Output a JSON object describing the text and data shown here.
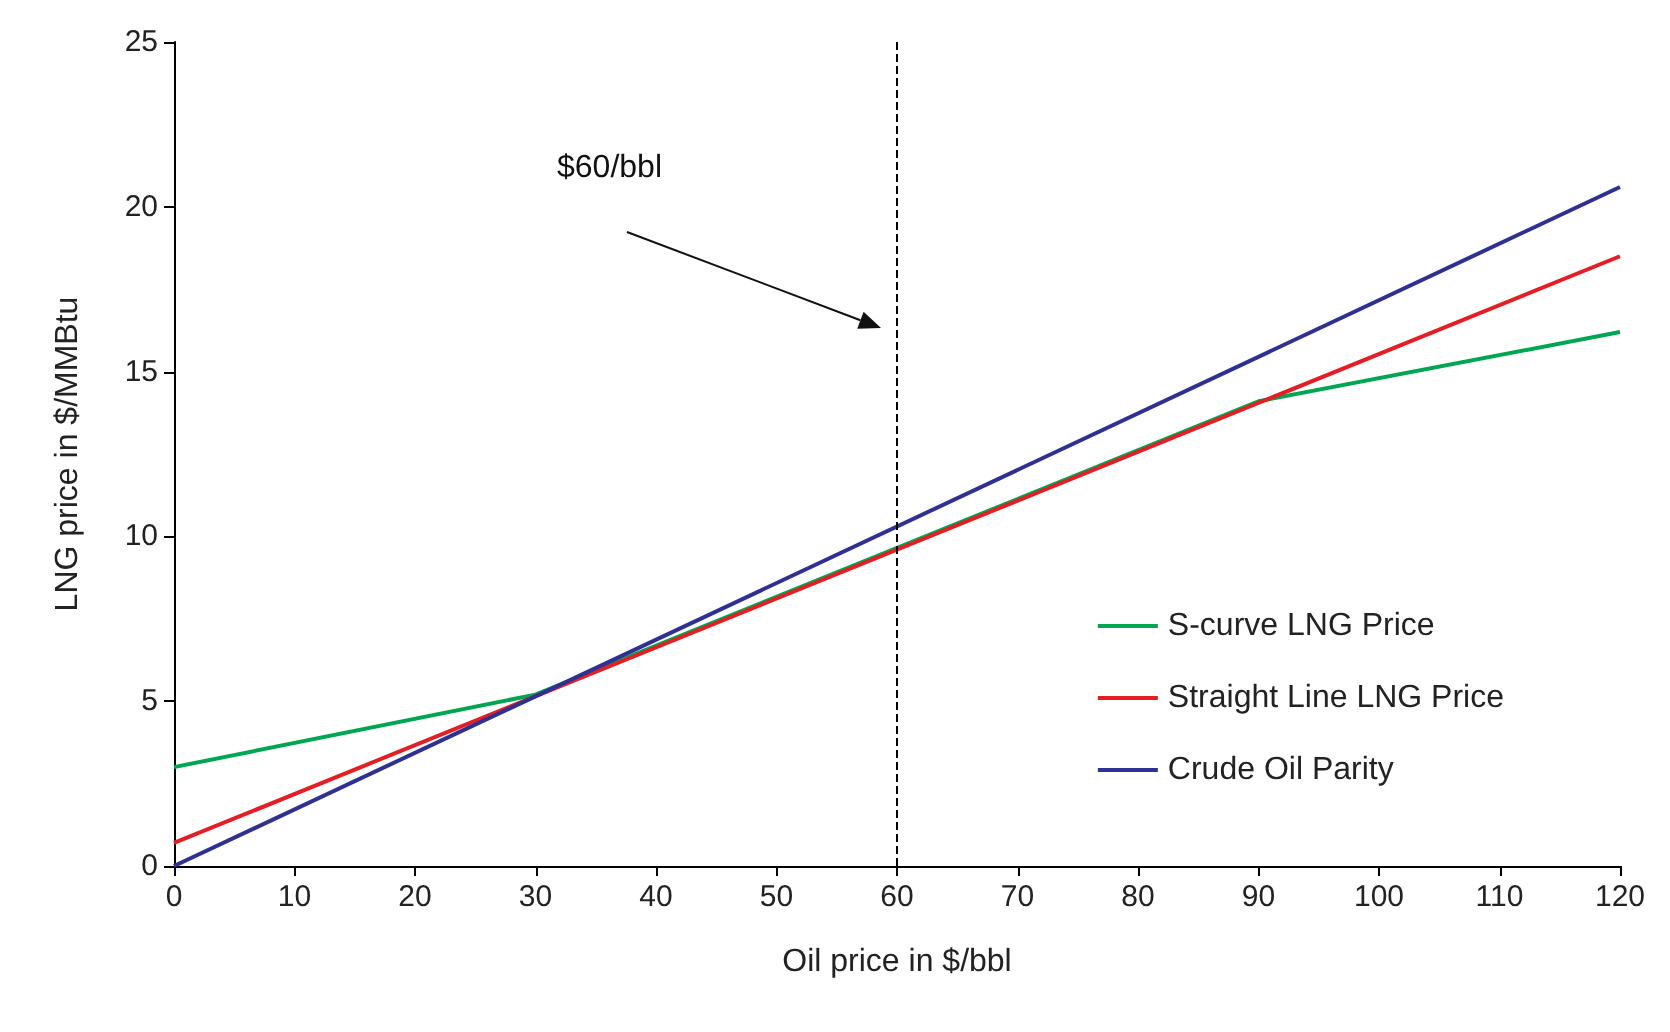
{
  "chart_data": {
    "type": "line",
    "xlabel": "Oil price in $/bbl",
    "ylabel": "LNG price in $/MMBtu",
    "series": [
      {
        "name": "S-curve LNG Price",
        "color": "#00a651",
        "x": [
          0,
          30,
          90,
          120
        ],
        "values": [
          3.0,
          5.2,
          14.1,
          16.2
        ]
      },
      {
        "name": "Straight Line LNG Price",
        "color": "#e31e24",
        "x": [
          0,
          120
        ],
        "values": [
          0.7,
          18.5
        ]
      },
      {
        "name": "Crude Oil Parity",
        "color": "#2e3192",
        "x": [
          0,
          120
        ],
        "values": [
          0,
          20.6
        ]
      }
    ],
    "xlim": [
      0,
      120
    ],
    "xticks": [
      0,
      10,
      20,
      30,
      40,
      50,
      60,
      70,
      80,
      90,
      100,
      110,
      120
    ],
    "ylim": [
      0,
      25
    ],
    "yticks": [
      0,
      5,
      10,
      15,
      20,
      25
    ],
    "ref_lines": [
      {
        "axis": "x",
        "value": 60,
        "color": "#000000",
        "line_style": "dashed"
      }
    ],
    "annotations": [
      "$60/bbl"
    ],
    "legend": "bottom right",
    "grid": false,
    "marker": "none",
    "line_style": "solid"
  }
}
